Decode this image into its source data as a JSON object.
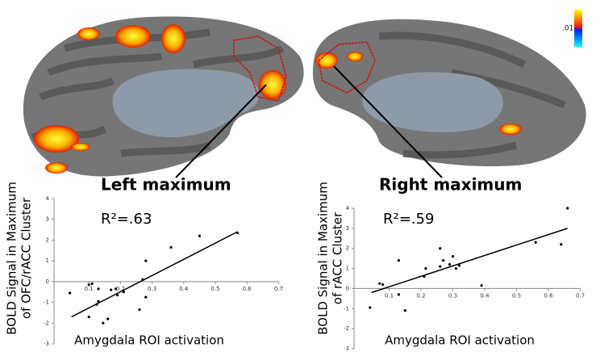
{
  "figure": {
    "colorbar_label": ".01"
  },
  "chart_data": [
    {
      "type": "scatter",
      "annotation": "Left maximum",
      "r2_label": "R²=.63",
      "x_label": "Amygdala ROI activation",
      "y_label": [
        "BOLD Signal in Maximum",
        "of OFC/rACC Cluster"
      ],
      "x": [
        0.04,
        0.1,
        0.11,
        0.1,
        0.125,
        0.13,
        0.13,
        0.145,
        0.16,
        0.17,
        0.185,
        0.19,
        0.21,
        0.26,
        0.27,
        0.28,
        0.28,
        0.36,
        0.45,
        0.57
      ],
      "y": [
        -0.55,
        -0.15,
        -0.1,
        -1.7,
        -1.1,
        -0.95,
        -0.35,
        -2.0,
        -1.8,
        -0.4,
        -0.35,
        -0.65,
        -0.5,
        -1.35,
        0.1,
        1.0,
        -0.75,
        1.65,
        2.2,
        2.35
      ],
      "color": "#000000",
      "trendline": {
        "x": [
          0.045,
          0.57
        ],
        "y": [
          -1.7,
          2.4
        ]
      },
      "xlim": [
        0,
        0.7
      ],
      "ylim": [
        -3,
        4
      ],
      "xticks": [
        0.1,
        0.2,
        0.3,
        0.4,
        0.5,
        0.6,
        0.7
      ],
      "yticks": [
        -3,
        -2,
        -1,
        0,
        1,
        2,
        3,
        4
      ]
    },
    {
      "type": "scatter",
      "annotation": "Right maximum",
      "r2_label": "R²=.59",
      "x_label": "Amygdala ROI activation",
      "y_label": [
        "BOLD Signal in Maximum",
        "of rACC Cluster"
      ],
      "x": [
        0.04,
        0.07,
        0.08,
        0.13,
        0.13,
        0.15,
        0.21,
        0.215,
        0.26,
        0.26,
        0.27,
        0.29,
        0.3,
        0.31,
        0.32,
        0.39,
        0.56,
        0.64,
        0.66
      ],
      "y": [
        -0.95,
        0.25,
        0.2,
        1.4,
        -0.3,
        -1.1,
        0.6,
        1.0,
        2.0,
        1.1,
        1.4,
        1.2,
        1.6,
        1.0,
        1.15,
        0.15,
        2.3,
        2.2,
        4.0
      ],
      "color": "#000000",
      "trendline": {
        "x": [
          0.045,
          0.66
        ],
        "y": [
          -0.2,
          3.0
        ]
      },
      "xlim": [
        0,
        0.7
      ],
      "ylim": [
        -3,
        4
      ],
      "xticks": [
        0.1,
        0.2,
        0.3,
        0.4,
        0.5,
        0.6,
        0.7
      ],
      "yticks": [
        -3,
        -2,
        -1,
        0,
        1,
        2,
        3,
        4
      ]
    }
  ]
}
